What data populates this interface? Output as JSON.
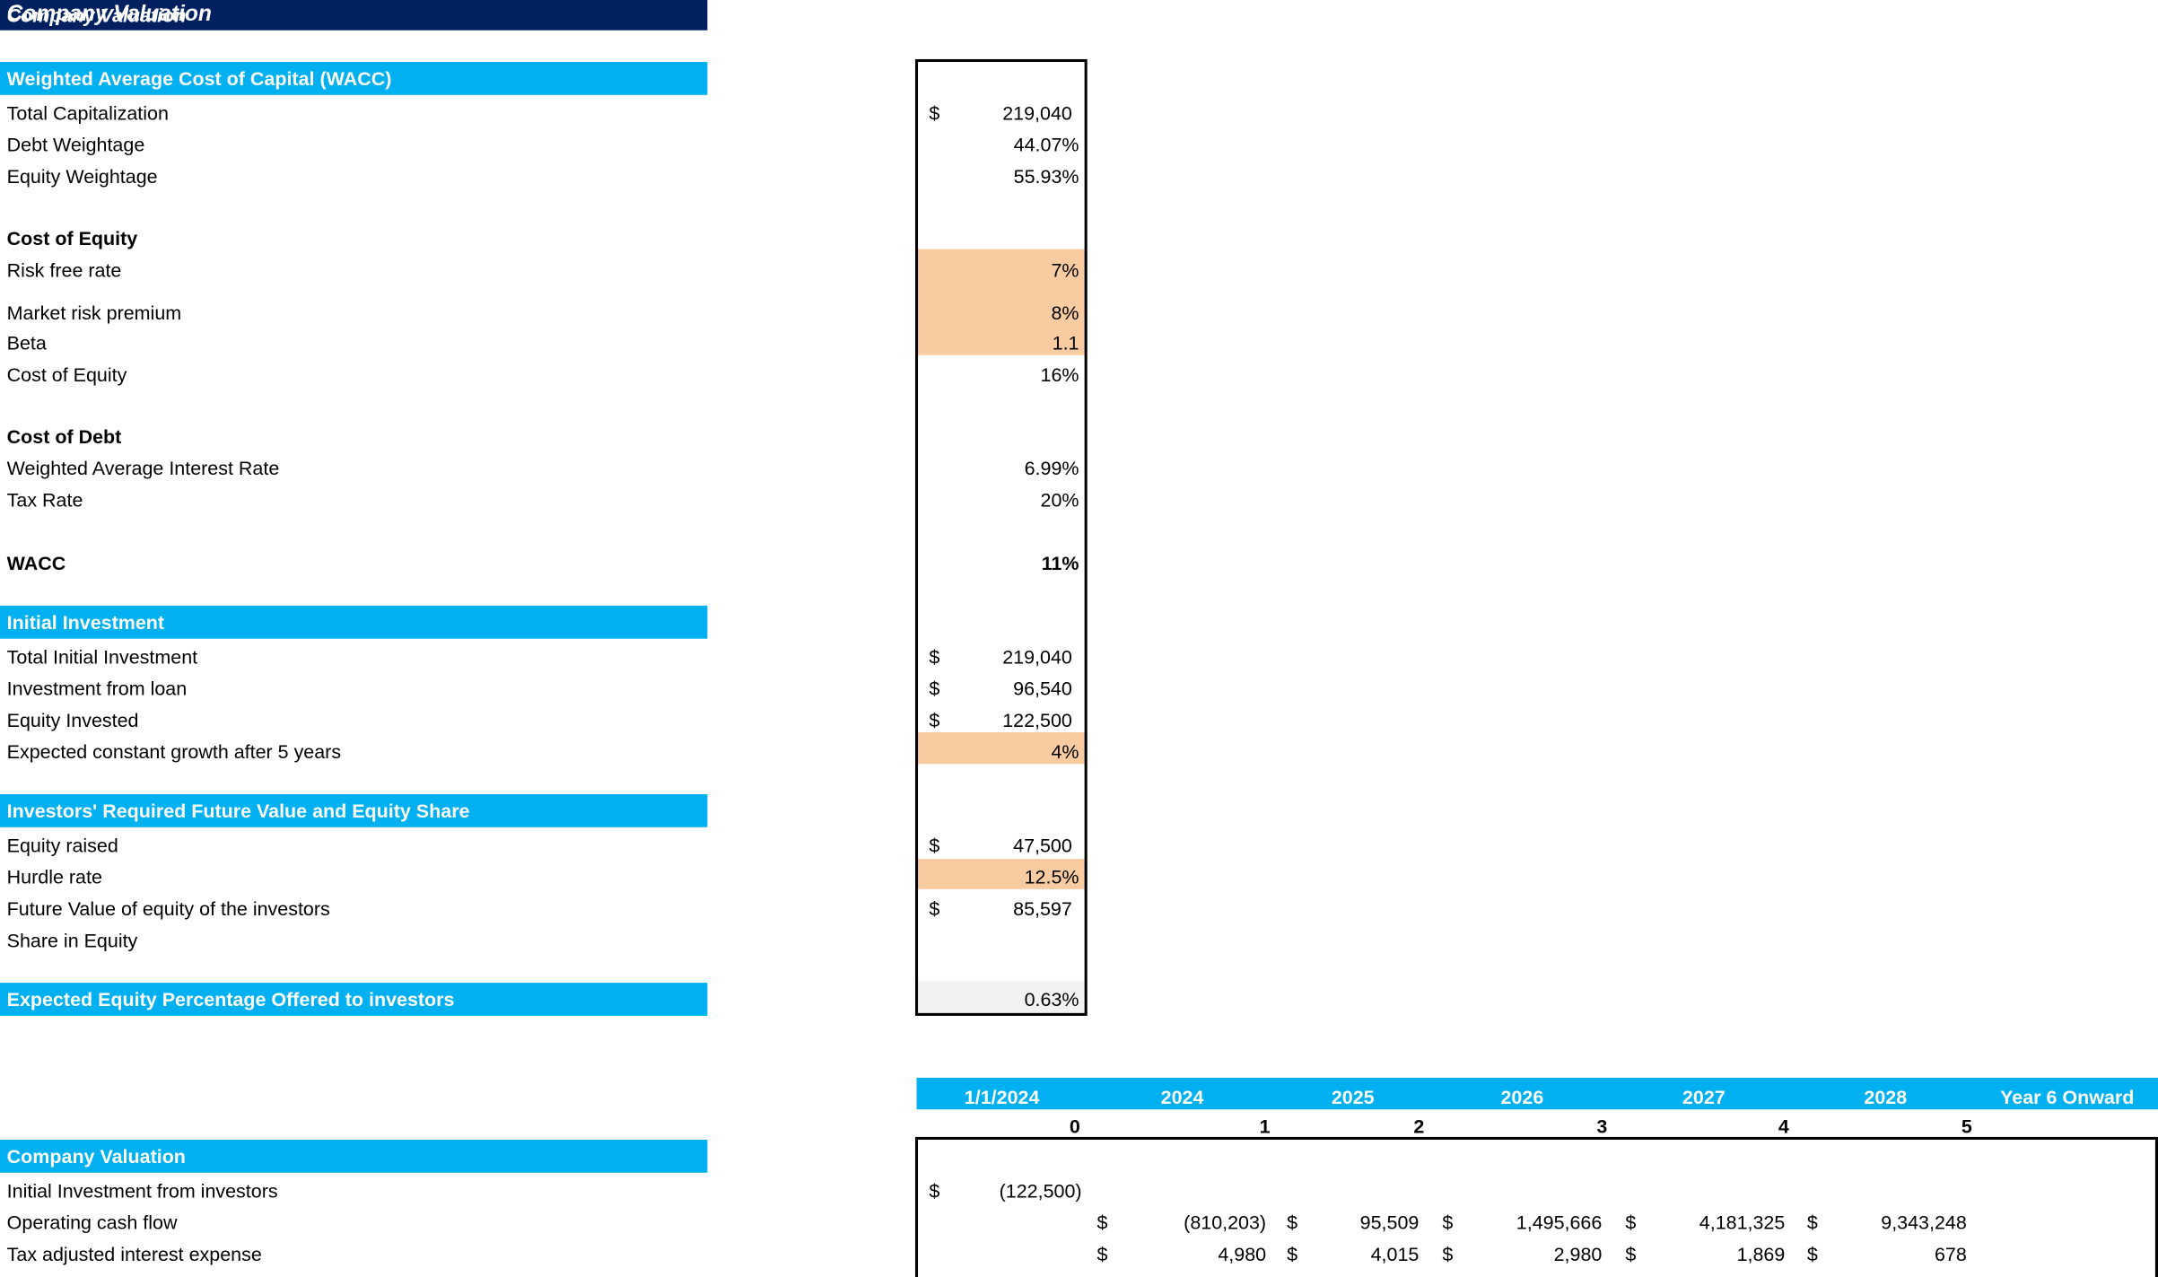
{
  "title": "Company Valuation",
  "wacc": {
    "header": "Weighted Average Cost of Capital (WACC)",
    "rows": [
      {
        "label": "Total Capitalization",
        "currency": "$",
        "value": "219,040"
      },
      {
        "label": "Debt Weightage",
        "value": "44.07%"
      },
      {
        "label": "Equity Weightage",
        "value": "55.93%"
      }
    ]
  },
  "cost_of_equity": {
    "header": "Cost of Equity",
    "rows": [
      {
        "label": "Risk free rate",
        "value": "7%"
      },
      {
        "label": "Market risk premium",
        "value": "8%"
      },
      {
        "label": "Beta",
        "value": "1.1"
      },
      {
        "label": "Cost of Equity",
        "value": "16%"
      }
    ]
  },
  "cost_of_debt": {
    "header": "Cost of Debt",
    "rows": [
      {
        "label": "Weighted Average Interest Rate",
        "value": "6.99%"
      },
      {
        "label": "Tax Rate",
        "value": "20%"
      }
    ]
  },
  "wacc_total": {
    "label": "WACC",
    "value": "11%"
  },
  "initial_investment": {
    "header": "Initial Investment",
    "rows": [
      {
        "label": "Total Initial Investment",
        "currency": "$",
        "value": "219,040"
      },
      {
        "label": "Investment from loan",
        "currency": "$",
        "value": "96,540"
      },
      {
        "label": "Equity Invested",
        "currency": "$",
        "value": "122,500"
      },
      {
        "label": "Expected constant growth after 5 years",
        "value": "4%"
      }
    ]
  },
  "investors": {
    "header": "Investors' Required Future Value and Equity Share",
    "rows": [
      {
        "label": "Equity raised",
        "currency": "$",
        "value": "47,500"
      },
      {
        "label": "Hurdle rate",
        "value": "12.5%"
      },
      {
        "label": "Future Value of equity of the investors",
        "currency": "$",
        "value": "85,597"
      },
      {
        "label": "Share in Equity"
      }
    ]
  },
  "expected_equity": {
    "label": "Expected Equity Percentage Offered to investors",
    "value": "0.63%"
  },
  "timeline": {
    "dates": [
      "1/1/2024",
      "2024",
      "2025",
      "2026",
      "2027",
      "2028",
      "Year 6 Onward"
    ],
    "periods": [
      "0",
      "1",
      "2",
      "3",
      "4",
      "5"
    ]
  },
  "valuation": {
    "header": "Company Valuation",
    "rows": [
      {
        "label": "Initial Investment from investors",
        "cells": [
          {
            "currency": "$",
            "value": "(122,500)"
          }
        ]
      },
      {
        "label": "Operating cash flow",
        "cells": [
          null,
          {
            "currency": "$",
            "value": "(810,203)"
          },
          {
            "currency": "$",
            "value": "95,509"
          },
          {
            "currency": "$",
            "value": "1,495,666"
          },
          {
            "currency": "$",
            "value": "4,181,325"
          },
          {
            "currency": "$",
            "value": "9,343,248"
          }
        ]
      },
      {
        "label": "Tax adjusted interest expense",
        "cells": [
          null,
          {
            "currency": "$",
            "value": "4,980"
          },
          {
            "currency": "$",
            "value": "4,015"
          },
          {
            "currency": "$",
            "value": "2,980"
          },
          {
            "currency": "$",
            "value": "1,869"
          },
          {
            "currency": "$",
            "value": "678"
          }
        ]
      }
    ]
  }
}
